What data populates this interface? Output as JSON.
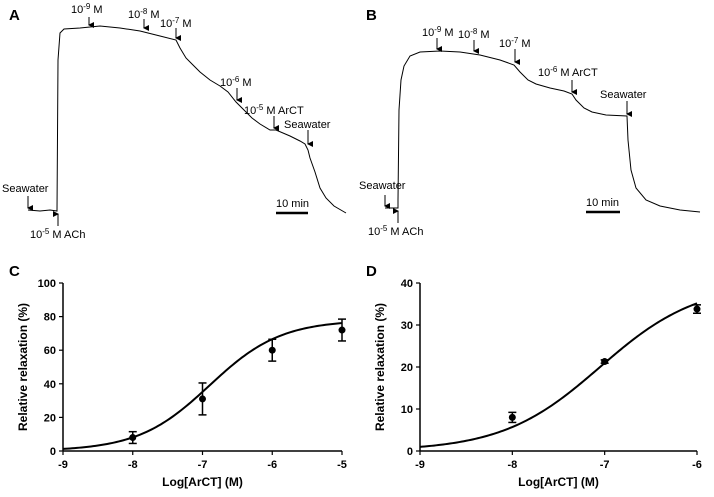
{
  "panels": {
    "A": {
      "letter": "A",
      "scale_bar_label": "10 min",
      "annotations": [
        {
          "id": "seawater_start",
          "prefix": "Seawater",
          "sup": "",
          "suffix": ""
        },
        {
          "id": "ach",
          "prefix": "10",
          "sup": "-5",
          "suffix": " M ACh"
        },
        {
          "id": "c9",
          "prefix": "10",
          "sup": "-9",
          "suffix": " M"
        },
        {
          "id": "c8",
          "prefix": "10",
          "sup": "-8",
          "suffix": " M"
        },
        {
          "id": "c7",
          "prefix": "10",
          "sup": "-7",
          "suffix": " M"
        },
        {
          "id": "c6",
          "prefix": "10",
          "sup": "-6",
          "suffix": " M"
        },
        {
          "id": "c5",
          "prefix": "10",
          "sup": "-5",
          "suffix": " M ArCT"
        },
        {
          "id": "seawater_end",
          "prefix": "Seawater",
          "sup": "",
          "suffix": ""
        }
      ]
    },
    "B": {
      "letter": "B",
      "scale_bar_label": "10 min",
      "annotations": [
        {
          "id": "seawater_start",
          "prefix": "Seawater",
          "sup": "",
          "suffix": ""
        },
        {
          "id": "ach",
          "prefix": "10",
          "sup": "-5",
          "suffix": " M ACh"
        },
        {
          "id": "c9",
          "prefix": "10",
          "sup": "-9",
          "suffix": " M"
        },
        {
          "id": "c8",
          "prefix": "10",
          "sup": "-8",
          "suffix": " M"
        },
        {
          "id": "c7",
          "prefix": "10",
          "sup": "-7",
          "suffix": " M"
        },
        {
          "id": "c6",
          "prefix": "10",
          "sup": "-6",
          "suffix": " M ArCT"
        },
        {
          "id": "seawater_end",
          "prefix": "Seawater",
          "sup": "",
          "suffix": ""
        }
      ]
    }
  },
  "chart_data": [
    {
      "panel": "C",
      "type": "scatter",
      "fit": "sigmoidal dose-response curve",
      "xlabel": "Log[ArCT] (M)",
      "ylabel": "Relative relaxation (%)",
      "xlim": [
        -9,
        -5
      ],
      "ylim": [
        0,
        100
      ],
      "xticks": [
        -9,
        -8,
        -7,
        -6,
        -5
      ],
      "yticks": [
        0,
        20,
        40,
        60,
        80,
        100
      ],
      "x": [
        -8,
        -7,
        -6,
        -5
      ],
      "y": [
        8,
        31,
        60,
        72
      ],
      "error": [
        3.5,
        9.5,
        6.5,
        6.5
      ],
      "curve": {
        "bottom": 0,
        "top": 78,
        "logEC50": -6.9,
        "hill": 0.85
      }
    },
    {
      "panel": "D",
      "type": "scatter",
      "fit": "sigmoidal dose-response curve",
      "xlabel": "Log[ArCT] (M)",
      "ylabel": "Relative relaxation (%)",
      "xlim": [
        -9,
        -6
      ],
      "ylim": [
        0,
        40
      ],
      "xticks": [
        -9,
        -8,
        -7,
        -6
      ],
      "yticks": [
        0,
        10,
        20,
        30,
        40
      ],
      "x": [
        -8,
        -7,
        -6
      ],
      "y": [
        8,
        21.3,
        33.8
      ],
      "error": [
        1.2,
        0.4,
        1.0
      ],
      "curve": {
        "bottom": 0,
        "top": 40,
        "logEC50": -7.05,
        "hill": 0.82
      }
    }
  ]
}
